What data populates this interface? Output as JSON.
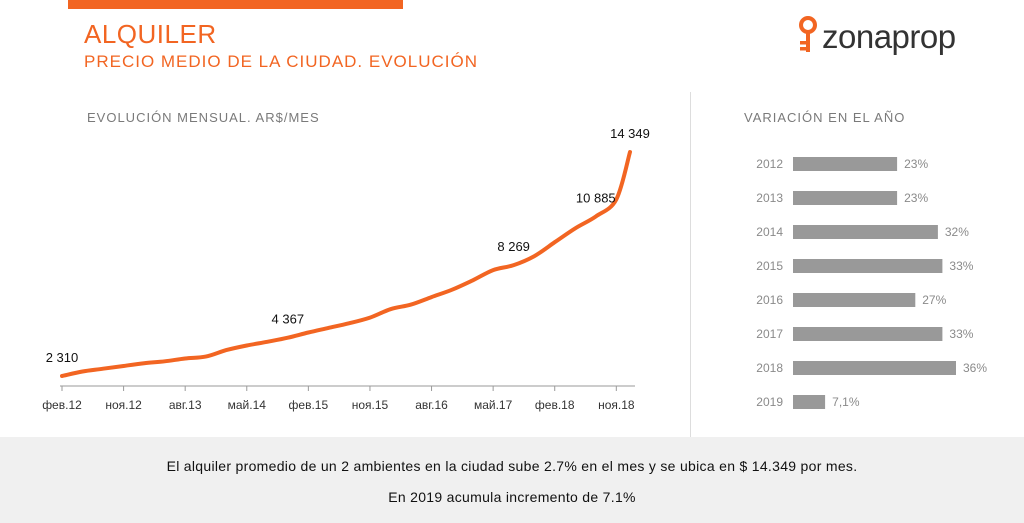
{
  "header": {
    "title": "ALQUILER",
    "subtitle": "PRECIO MEDIO DE LA CIUDAD. EVOLUCIÓN",
    "brand": "zonaprop",
    "accent_color": "#f26522"
  },
  "chart_data": [
    {
      "type": "line",
      "title": "EVOLUCIÓN MENSUAL. AR$/MES",
      "x_ticks": [
        "фев.12",
        "ноя.12",
        "авг.13",
        "май.14",
        "фев.15",
        "ноя.15",
        "авг.16",
        "май.17",
        "фев.18",
        "ноя.18"
      ],
      "x": [
        "2012-02",
        "2012-05",
        "2012-08",
        "2012-11",
        "2013-02",
        "2013-05",
        "2013-08",
        "2013-11",
        "2014-02",
        "2014-05",
        "2014-08",
        "2014-11",
        "2015-02",
        "2015-05",
        "2015-08",
        "2015-11",
        "2016-02",
        "2016-05",
        "2016-08",
        "2016-11",
        "2017-02",
        "2017-05",
        "2017-08",
        "2017-11",
        "2018-02",
        "2018-05",
        "2018-08",
        "2018-11",
        "2019-01"
      ],
      "series": [
        {
          "color": "#f26522",
          "values": [
            2310,
            2550,
            2700,
            2850,
            3000,
            3100,
            3250,
            3350,
            3700,
            3950,
            4150,
            4367,
            4650,
            4900,
            5150,
            5450,
            5900,
            6150,
            6550,
            6950,
            7450,
            8000,
            8269,
            8750,
            9500,
            10250,
            10885,
            11800,
            14349
          ]
        }
      ],
      "data_labels": [
        {
          "x": "2012-02",
          "text": "2 310"
        },
        {
          "x": "2014-11",
          "text": "4 367"
        },
        {
          "x": "2017-08",
          "text": "8 269"
        },
        {
          "x": "2018-08",
          "text": "10 885"
        },
        {
          "x": "2019-01",
          "text": "14 349"
        }
      ],
      "grid": false,
      "legend": "none"
    },
    {
      "type": "bar",
      "orientation": "horizontal",
      "title": "VARIACIÓN EN EL AÑO",
      "categories": [
        "2012",
        "2013",
        "2014",
        "2015",
        "2016",
        "2017",
        "2018",
        "2019"
      ],
      "values": [
        23,
        23,
        32,
        33,
        27,
        33,
        36,
        7.1
      ],
      "value_labels": [
        "23%",
        "23%",
        "32%",
        "33%",
        "27%",
        "33%",
        "36%",
        "7,1%"
      ],
      "bar_color": "#999999",
      "xlim": [
        0,
        36
      ]
    }
  ],
  "footer": {
    "line1": "El alquiler promedio de un 2 ambientes en la ciudad sube 2.7% en el mes y se ubica en $ 14.349 por mes.",
    "line2": "En 2019 acumula incremento de 7.1%"
  }
}
